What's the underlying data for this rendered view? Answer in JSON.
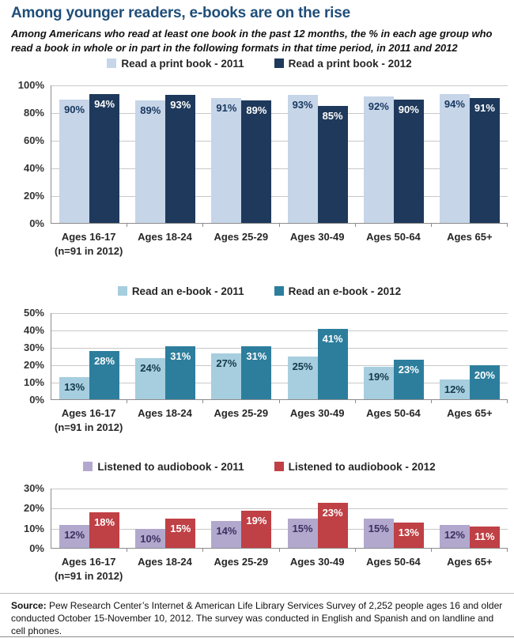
{
  "page": {
    "title": "Among younger readers, e-books are on the rise",
    "subtitle": "Among Americans who read at least one book in the past 12 months, the % in each age group who read a book in whole or in part in the following formats in that time period, in 2011 and 2012",
    "title_color": "#1F4E79",
    "source_label": "Source:",
    "source_text": "Pew Research Center’s Internet & American Life Library Services Survey of 2,252 people ages 16 and older conducted October 15-November 10, 2012. The survey was conducted in English and Spanish and on landline and cell phones."
  },
  "chart_data": [
    {
      "type": "bar",
      "title": "Read a print book by age group, 2011 vs 2012",
      "categories": [
        "Ages 16-17",
        "Ages 18-24",
        "Ages 25-29",
        "Ages 30-49",
        "Ages 50-64",
        "Ages 65+"
      ],
      "category_notes": [
        "(n=91 in 2012)",
        "",
        "",
        "",
        "",
        ""
      ],
      "series": [
        {
          "name": "Read a print book - 2011",
          "color": "#C6D5E8",
          "label_color": "#17375E",
          "values": [
            90,
            89,
            91,
            93,
            92,
            94
          ]
        },
        {
          "name": "Read a print book - 2012",
          "color": "#1E395B",
          "label_color": "#FFFFFF",
          "values": [
            94,
            93,
            89,
            85,
            90,
            91
          ]
        }
      ],
      "value_suffix": "%",
      "ylim": [
        0,
        100
      ],
      "ytick_step": 20,
      "grid": true,
      "legend_position": "top"
    },
    {
      "type": "bar",
      "title": "Read an e-book by age group, 2011 vs 2012",
      "categories": [
        "Ages 16-17",
        "Ages 18-24",
        "Ages 25-29",
        "Ages 30-49",
        "Ages 50-64",
        "Ages 65+"
      ],
      "category_notes": [
        "(n=91 in 2012)",
        "",
        "",
        "",
        "",
        ""
      ],
      "series": [
        {
          "name": "Read an e-book - 2011",
          "color": "#A6CEDE",
          "label_color": "#14384A",
          "values": [
            13,
            24,
            27,
            25,
            19,
            12
          ]
        },
        {
          "name": "Read an e-book - 2012",
          "color": "#2D7E9D",
          "label_color": "#FFFFFF",
          "values": [
            28,
            31,
            31,
            41,
            23,
            20
          ]
        }
      ],
      "value_suffix": "%",
      "ylim": [
        0,
        50
      ],
      "ytick_step": 10,
      "grid": true,
      "legend_position": "top"
    },
    {
      "type": "bar",
      "title": "Listened to audiobook by age group, 2011 vs 2012",
      "categories": [
        "Ages 16-17",
        "Ages 18-24",
        "Ages 25-29",
        "Ages 30-49",
        "Ages 50-64",
        "Ages 65+"
      ],
      "category_notes": [
        "(n=91 in 2012)",
        "",
        "",
        "",
        "",
        ""
      ],
      "series": [
        {
          "name": "Listened to audiobook - 2011",
          "color": "#B2A8CD",
          "label_color": "#3A3060",
          "values": [
            12,
            10,
            14,
            15,
            15,
            12
          ]
        },
        {
          "name": "Listened to audiobook - 2012",
          "color": "#BF4045",
          "label_color": "#FFFFFF",
          "values": [
            18,
            15,
            19,
            23,
            13,
            11
          ]
        }
      ],
      "value_suffix": "%",
      "ylim": [
        0,
        30
      ],
      "ytick_step": 10,
      "grid": true,
      "legend_position": "top"
    }
  ]
}
